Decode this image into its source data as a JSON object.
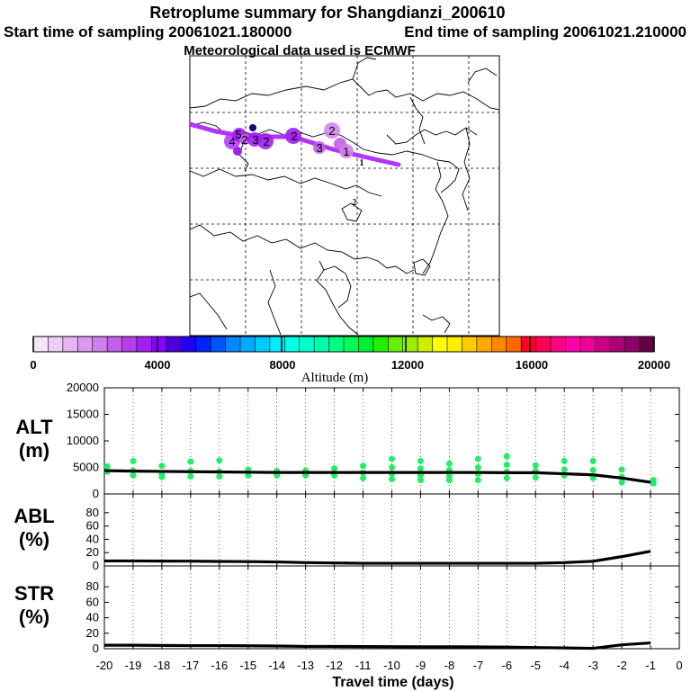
{
  "header": {
    "title": "Retroplume summary for Shangdianzi_200610",
    "start_label": "Start time of sampling 20061021.180000",
    "end_label": "End time of sampling 20061021.210000",
    "met_label": "Meteorological data used is ECMWF"
  },
  "map": {
    "track_color": "#b433ff",
    "labels": [
      {
        "text": "2",
        "size": "big"
      },
      {
        "text": "1",
        "size": "big"
      },
      {
        "text": "1",
        "size": "small"
      },
      {
        "text": "2",
        "size": "small"
      },
      {
        "text": "3",
        "size": "big"
      },
      {
        "text": "2",
        "size": "big"
      },
      {
        "text": "2",
        "size": "big"
      },
      {
        "text": "3",
        "size": "big"
      },
      {
        "text": "2",
        "size": "big"
      },
      {
        "text": "5",
        "size": "big"
      },
      {
        "text": "4",
        "size": "big"
      }
    ]
  },
  "colorbar": {
    "colors": [
      "#f6e6fb",
      "#efcdf7",
      "#e6b3f3",
      "#dd99ef",
      "#d17fec",
      "#c25fe9",
      "#b43ee7",
      "#a31ff1",
      "#8800ff",
      "#4b00d9",
      "#2200f0",
      "#0022ff",
      "#0055ff",
      "#0088ff",
      "#00aaff",
      "#00ccff",
      "#00eeff",
      "#00ffe6",
      "#00ffcc",
      "#00ffaa",
      "#00ff80",
      "#00ff55",
      "#00ee33",
      "#22ee00",
      "#66ee00",
      "#99ee00",
      "#ccee00",
      "#ffff00",
      "#ffee00",
      "#ffcc00",
      "#ffaa00",
      "#ff8800",
      "#ff6600",
      "#ff0022",
      "#ff0055",
      "#ff0088",
      "#ff00aa",
      "#ee0099",
      "#cc0088",
      "#aa0077",
      "#8a0066",
      "#660044"
    ],
    "tick_labels": [
      "0",
      "4000",
      "8000",
      "12000",
      "16000",
      "20000"
    ],
    "axis_label": "Altitude (m)"
  },
  "chart_data": [
    {
      "type": "line",
      "panel": "ALT",
      "ylabel": "ALT\n(m)",
      "ylabel_lines": [
        "ALT",
        "(m)"
      ],
      "ylim": [
        0,
        20000
      ],
      "yticks": [
        "20000",
        "15000",
        "10000",
        "5000",
        "0"
      ],
      "x": [
        -20,
        -19,
        -18,
        -17,
        -16,
        -15,
        -14,
        -13,
        -12,
        -11,
        -10,
        -9,
        -8,
        -7,
        -6,
        -5,
        -4,
        -3,
        -2,
        -1
      ],
      "values": [
        4400,
        4300,
        4250,
        4200,
        4150,
        4100,
        4050,
        4050,
        4050,
        4050,
        4050,
        4050,
        4050,
        4050,
        4000,
        4000,
        3800,
        3600,
        3000,
        2200
      ],
      "scatter": [
        {
          "x": -19.9,
          "y": 5200
        },
        {
          "x": -19.9,
          "y": 4200
        },
        {
          "x": -19.0,
          "y": 6200
        },
        {
          "x": -19.0,
          "y": 4400
        },
        {
          "x": -19.0,
          "y": 3500
        },
        {
          "x": -18.0,
          "y": 5300
        },
        {
          "x": -18.0,
          "y": 3800
        },
        {
          "x": -18.0,
          "y": 3200
        },
        {
          "x": -17.0,
          "y": 6100
        },
        {
          "x": -17.0,
          "y": 4300
        },
        {
          "x": -17.0,
          "y": 3300
        },
        {
          "x": -16.0,
          "y": 6300
        },
        {
          "x": -16.0,
          "y": 4200
        },
        {
          "x": -16.0,
          "y": 3300
        },
        {
          "x": -15.0,
          "y": 4600
        },
        {
          "x": -15.0,
          "y": 3500
        },
        {
          "x": -14.0,
          "y": 4300
        },
        {
          "x": -14.0,
          "y": 3500
        },
        {
          "x": -13.0,
          "y": 4400
        },
        {
          "x": -13.0,
          "y": 3500
        },
        {
          "x": -12.0,
          "y": 4800
        },
        {
          "x": -12.0,
          "y": 3500
        },
        {
          "x": -11.0,
          "y": 5300
        },
        {
          "x": -11.0,
          "y": 4000
        },
        {
          "x": -11.0,
          "y": 3000
        },
        {
          "x": -10.0,
          "y": 6600
        },
        {
          "x": -10.0,
          "y": 5000
        },
        {
          "x": -10.0,
          "y": 3800
        },
        {
          "x": -10.0,
          "y": 2800
        },
        {
          "x": -9.0,
          "y": 6200
        },
        {
          "x": -9.0,
          "y": 4800
        },
        {
          "x": -9.0,
          "y": 3500
        },
        {
          "x": -9.0,
          "y": 2600
        },
        {
          "x": -8.0,
          "y": 5700
        },
        {
          "x": -8.0,
          "y": 4500
        },
        {
          "x": -8.0,
          "y": 3400
        },
        {
          "x": -8.0,
          "y": 2600
        },
        {
          "x": -7.0,
          "y": 6600
        },
        {
          "x": -7.0,
          "y": 5000
        },
        {
          "x": -7.0,
          "y": 3800
        },
        {
          "x": -7.0,
          "y": 2600
        },
        {
          "x": -6.0,
          "y": 7100
        },
        {
          "x": -6.0,
          "y": 5500
        },
        {
          "x": -6.0,
          "y": 4200
        },
        {
          "x": -6.0,
          "y": 3000
        },
        {
          "x": -5.0,
          "y": 5400
        },
        {
          "x": -5.0,
          "y": 4300
        },
        {
          "x": -5.0,
          "y": 3100
        },
        {
          "x": -4.0,
          "y": 6200
        },
        {
          "x": -4.0,
          "y": 4600
        },
        {
          "x": -4.0,
          "y": 3500
        },
        {
          "x": -3.0,
          "y": 6200
        },
        {
          "x": -3.0,
          "y": 4500
        },
        {
          "x": -3.0,
          "y": 3000
        },
        {
          "x": -2.0,
          "y": 4600
        },
        {
          "x": -2.0,
          "y": 3200
        },
        {
          "x": -2.0,
          "y": 2200
        },
        {
          "x": -0.9,
          "y": 2600
        },
        {
          "x": -0.9,
          "y": 2000
        }
      ]
    },
    {
      "type": "line",
      "panel": "ABL",
      "ylabel": "ABL\n(%)",
      "ylabel_lines": [
        "ABL",
        "(%)"
      ],
      "ylim": [
        0,
        100
      ],
      "yticks": [
        "80",
        "60",
        "40",
        "20",
        "0"
      ],
      "x": [
        -20,
        -19,
        -18,
        -17,
        -16,
        -15,
        -14,
        -13,
        -12,
        -11,
        -10,
        -9,
        -8,
        -7,
        -6,
        -5,
        -4,
        -3,
        -2,
        -1
      ],
      "values": [
        7.5,
        7.5,
        7.3,
        7.2,
        6.8,
        6.5,
        6.0,
        5.0,
        4.5,
        4.0,
        4.0,
        4.0,
        4.0,
        4.0,
        4.0,
        4.0,
        5.0,
        7.0,
        14.0,
        22.0
      ]
    },
    {
      "type": "line",
      "panel": "STR",
      "ylabel": "STR\n(%)",
      "ylabel_lines": [
        "STR",
        "(%)"
      ],
      "ylim": [
        0,
        100
      ],
      "yticks": [
        "80",
        "60",
        "40",
        "20",
        "0"
      ],
      "x": [
        -20,
        -19,
        -18,
        -17,
        -16,
        -15,
        -14,
        -13,
        -12,
        -11,
        -10,
        -9,
        -8,
        -7,
        -6,
        -5,
        -4,
        -3,
        -2,
        -1
      ],
      "values": [
        4.5,
        4.5,
        4.2,
        4.0,
        4.0,
        3.8,
        3.5,
        3.0,
        3.0,
        2.8,
        2.6,
        2.5,
        2.5,
        2.3,
        2.0,
        1.5,
        1.0,
        0.5,
        5.0,
        7.5
      ]
    }
  ],
  "xaxis": {
    "tick_labels": [
      "-20",
      "-19",
      "-18",
      "-17",
      "-16",
      "-15",
      "-14",
      "-13",
      "-12",
      "-11",
      "-10",
      "-9",
      "-8",
      "-7",
      "-6",
      "-5",
      "-4",
      "-3",
      "-2",
      "-1",
      "0"
    ],
    "label": "Travel time (days)"
  }
}
